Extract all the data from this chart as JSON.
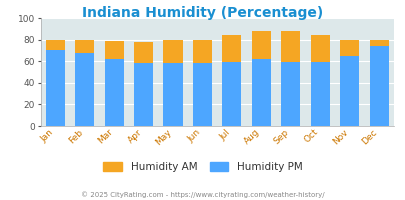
{
  "title": "Indiana Humidity (Percentage)",
  "title_color": "#1a8fd1",
  "months": [
    "Jan",
    "Feb",
    "Mar",
    "Apr",
    "May",
    "Jun",
    "Jul",
    "Aug",
    "Sep",
    "Oct",
    "Nov",
    "Dec"
  ],
  "humidity_pm": [
    70,
    68,
    62,
    58,
    58,
    58,
    59,
    62,
    59,
    59,
    65,
    74
  ],
  "humidity_am": [
    80,
    80,
    79,
    78,
    80,
    80,
    84,
    88,
    88,
    84,
    80,
    80
  ],
  "color_pm": "#4da6ff",
  "color_am": "#f5a623",
  "ylim": [
    0,
    100
  ],
  "yticks": [
    0,
    20,
    40,
    60,
    80,
    100
  ],
  "bg_color": "#dde8ea",
  "footer": "© 2025 CityRating.com - https://www.cityrating.com/weather-history/",
  "footer_color": "#888888",
  "legend_am_label": "Humidity AM",
  "legend_pm_label": "Humidity PM",
  "legend_text_color": "#333333"
}
